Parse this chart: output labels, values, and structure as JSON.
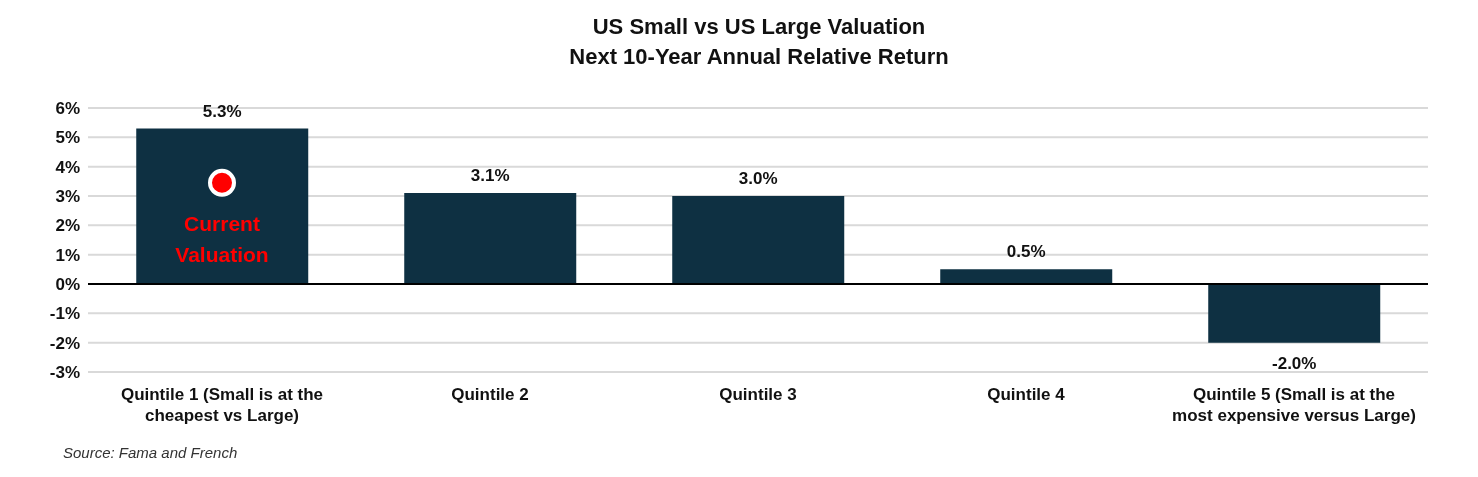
{
  "chart_data": {
    "type": "bar",
    "title": "US Small vs US Large Valuation\nNext 10-Year Annual Relative Return",
    "categories": [
      "Quintile 1 (Small is at the cheapest vs Large)",
      "Quintile 2",
      "Quintile 3",
      "Quintile 4",
      "Quintile 5 (Small is at the most expensive versus Large)"
    ],
    "values": [
      5.3,
      3.1,
      3.0,
      0.5,
      -2.0
    ],
    "value_labels": [
      "5.3%",
      "3.1%",
      "3.0%",
      "0.5%",
      "-2.0%"
    ],
    "color": "#0e3042",
    "ylim": [
      -3,
      6
    ],
    "yticks": [
      {
        "value": -3,
        "label": "-3%"
      },
      {
        "value": -2,
        "label": "-2%"
      },
      {
        "value": -1,
        "label": "-1%"
      },
      {
        "value": 0,
        "label": "0%"
      },
      {
        "value": 1,
        "label": "1%"
      },
      {
        "value": 2,
        "label": "2%"
      },
      {
        "value": 3,
        "label": "3%"
      },
      {
        "value": 4,
        "label": "4%"
      },
      {
        "value": 5,
        "label": "5%"
      },
      {
        "value": 6,
        "label": "6%"
      }
    ],
    "grid": "y",
    "annotations": [
      {
        "text": "Current Valuation",
        "x": "Quintile 1 (Small is at the cheapest vs Large)",
        "y": 3.45
      },
      "Source: Fama and French"
    ]
  }
}
